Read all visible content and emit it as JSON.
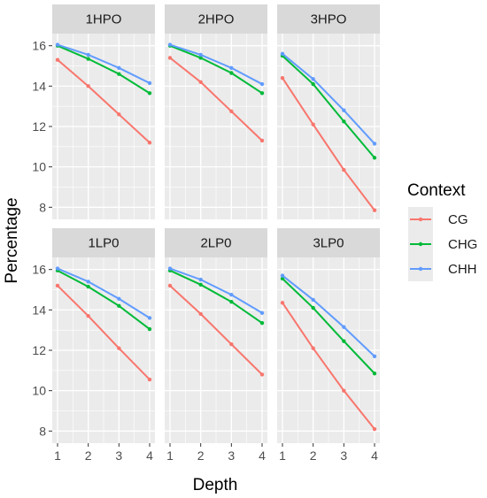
{
  "chart_data": {
    "type": "line",
    "xlabel": "Depth",
    "ylabel": "Percentage",
    "x": [
      1,
      2,
      3,
      4
    ],
    "xlim": [
      1,
      4
    ],
    "ylim": [
      7.4,
      16.6
    ],
    "xticks": [
      "1",
      "2",
      "3",
      "4"
    ],
    "yticks": [
      "8",
      "10",
      "12",
      "14",
      "16"
    ],
    "grid": true,
    "legend": {
      "title": "Context",
      "placement": "right",
      "entries": [
        "CG",
        "CHG",
        "CHH"
      ]
    },
    "colors": {
      "CG": "#F8766D",
      "CHG": "#00BA38",
      "CHH": "#619CFF",
      "panel_bg": "#EBEBEB",
      "strip_bg": "#D9D9D9",
      "grid": "#FFFFFF"
    },
    "panels": [
      {
        "label": "1HPO",
        "series": [
          {
            "name": "CG",
            "values": [
              15.3,
              14.0,
              12.6,
              11.2
            ]
          },
          {
            "name": "CHG",
            "values": [
              16.0,
              15.35,
              14.6,
              13.65
            ]
          },
          {
            "name": "CHH",
            "values": [
              16.05,
              15.55,
              14.9,
              14.15
            ]
          }
        ]
      },
      {
        "label": "2HPO",
        "series": [
          {
            "name": "CG",
            "values": [
              15.4,
              14.2,
              12.75,
              11.3
            ]
          },
          {
            "name": "CHG",
            "values": [
              16.0,
              15.4,
              14.65,
              13.65
            ]
          },
          {
            "name": "CHH",
            "values": [
              16.05,
              15.55,
              14.9,
              14.1
            ]
          }
        ]
      },
      {
        "label": "3HPO",
        "series": [
          {
            "name": "CG",
            "values": [
              14.4,
              12.1,
              9.85,
              7.85
            ]
          },
          {
            "name": "CHG",
            "values": [
              15.5,
              14.1,
              12.25,
              10.45
            ]
          },
          {
            "name": "CHH",
            "values": [
              15.6,
              14.35,
              12.8,
              11.15
            ]
          }
        ]
      },
      {
        "label": "1LP0",
        "series": [
          {
            "name": "CG",
            "values": [
              15.2,
              13.7,
              12.1,
              10.55
            ]
          },
          {
            "name": "CHG",
            "values": [
              15.95,
              15.15,
              14.2,
              13.05
            ]
          },
          {
            "name": "CHH",
            "values": [
              16.05,
              15.4,
              14.55,
              13.6
            ]
          }
        ]
      },
      {
        "label": "2LP0",
        "series": [
          {
            "name": "CG",
            "values": [
              15.2,
              13.8,
              12.3,
              10.8
            ]
          },
          {
            "name": "CHG",
            "values": [
              15.95,
              15.25,
              14.4,
              13.35
            ]
          },
          {
            "name": "CHH",
            "values": [
              16.05,
              15.5,
              14.75,
              13.85
            ]
          }
        ]
      },
      {
        "label": "3LP0",
        "series": [
          {
            "name": "CG",
            "values": [
              14.35,
              12.1,
              10.0,
              8.1
            ]
          },
          {
            "name": "CHG",
            "values": [
              15.55,
              14.1,
              12.45,
              10.85
            ]
          },
          {
            "name": "CHH",
            "values": [
              15.7,
              14.5,
              13.15,
              11.7
            ]
          }
        ]
      }
    ]
  }
}
